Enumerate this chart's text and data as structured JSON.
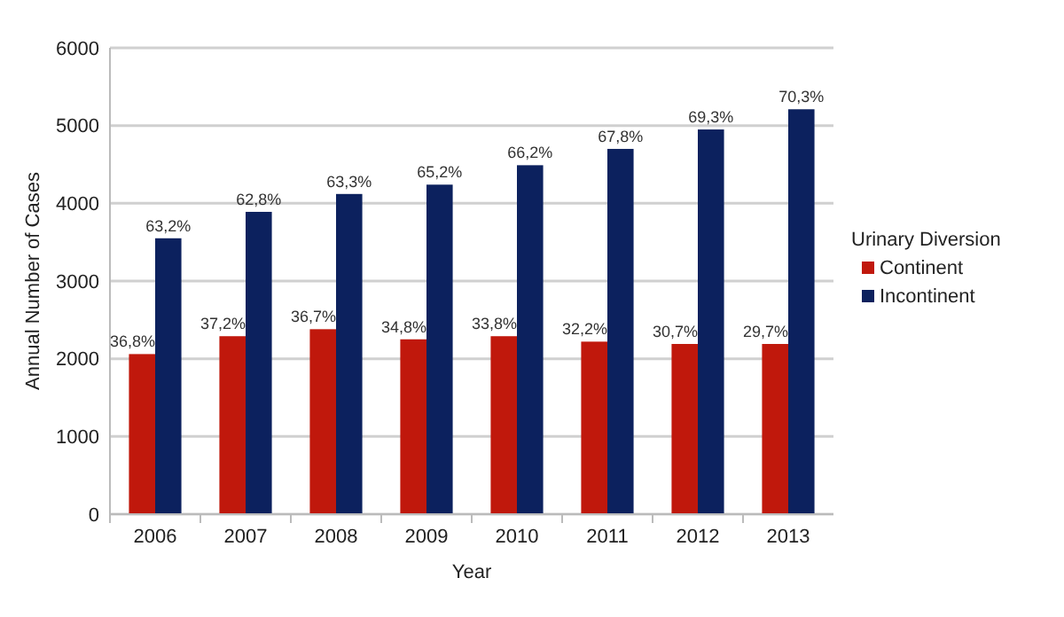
{
  "chart_data": {
    "type": "bar",
    "xlabel": "Year",
    "ylabel": "Annual Number of Cases",
    "legend_title": "Urinary Diversion",
    "categories": [
      "2006",
      "2007",
      "2008",
      "2009",
      "2010",
      "2011",
      "2012",
      "2013"
    ],
    "series": [
      {
        "name": "Continent",
        "color": "#c0180c",
        "values": [
          2060,
          2290,
          2380,
          2250,
          2290,
          2220,
          2190,
          2190
        ]
      },
      {
        "name": "Incontinent",
        "color": "#0c215e",
        "values": [
          3550,
          3890,
          4120,
          4240,
          4490,
          4700,
          4950,
          5210
        ]
      }
    ],
    "annotations": [
      {
        "text": "36,8%",
        "x": "2006",
        "y": 2060
      },
      {
        "text": "37,2%",
        "x": "2007",
        "y": 2290
      },
      {
        "text": "36,7%",
        "x": "2008",
        "y": 2380
      },
      {
        "text": "34,8%",
        "x": "2009",
        "y": 2250
      },
      {
        "text": "33,8%",
        "x": "2010",
        "y": 2290
      },
      {
        "text": "32,2%",
        "x": "2011",
        "y": 2220
      },
      {
        "text": "30,7%",
        "x": "2012",
        "y": 2190
      },
      {
        "text": "29,7%",
        "x": "2013",
        "y": 2190
      },
      {
        "text": "63,2%",
        "x": "2006",
        "y": 3550
      },
      {
        "text": "62,8%",
        "x": "2007",
        "y": 3890
      },
      {
        "text": "63,3%",
        "x": "2008",
        "y": 4120
      },
      {
        "text": "65,2%",
        "x": "2009",
        "y": 4240
      },
      {
        "text": "66,2%",
        "x": "2010",
        "y": 4490
      },
      {
        "text": "67,8%",
        "x": "2011",
        "y": 4700
      },
      {
        "text": "69,3%",
        "x": "2012",
        "y": 4950
      },
      {
        "text": "70,3%",
        "x": "2013",
        "y": 5210
      }
    ],
    "ylim": [
      0,
      6000
    ],
    "yticks": [
      0,
      1000,
      2000,
      3000,
      4000,
      5000,
      6000
    ],
    "grid": "y",
    "legend": "right"
  }
}
